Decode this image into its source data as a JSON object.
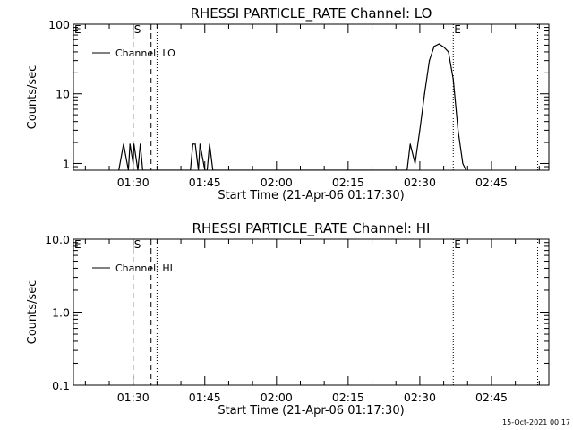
{
  "footer": {
    "timestamp": "15-Oct-2021 00:17"
  },
  "chart_data": [
    {
      "type": "line",
      "title": "RHESSI PARTICLE_RATE Channel: LO",
      "xlabel": "Start Time (21-Apr-06 01:17:30)",
      "ylabel": "Counts/sec",
      "xlim": [
        "01:17:30",
        "02:57:00"
      ],
      "ylim": [
        0.8,
        100
      ],
      "yscale": "log",
      "x_tick_labels": [
        "01:30",
        "01:45",
        "02:00",
        "02:15",
        "02:30",
        "02:45"
      ],
      "y_tick_labels": [
        "1",
        "10",
        "100"
      ],
      "legend": {
        "position": "top-left",
        "entries": [
          "Channel: LO"
        ]
      },
      "series": [
        {
          "name": "Channel: LO",
          "x": [
            "01:27:00",
            "01:28:00",
            "01:29:00",
            "01:29:20",
            "01:30:00",
            "01:30:10",
            "01:31:00",
            "01:31:30",
            "01:32:00",
            "01:42:00",
            "01:42:30",
            "01:43:00",
            "01:43:40",
            "01:44:00",
            "01:45:00",
            "01:45:30",
            "01:46:00",
            "01:46:40",
            "02:27:20",
            "02:28:00",
            "02:29:00",
            "02:30:00",
            "02:31:00",
            "02:32:00",
            "02:33:00",
            "02:34:00",
            "02:35:00",
            "02:36:00",
            "02:37:00",
            "02:38:00",
            "02:39:00",
            "02:39:40"
          ],
          "y": [
            0.8,
            1.9,
            0.8,
            1.9,
            1.0,
            1.9,
            0.8,
            1.9,
            0.8,
            0.8,
            1.9,
            1.9,
            0.8,
            1.9,
            0.8,
            0.8,
            1.9,
            0.8,
            0.8,
            1.9,
            1.0,
            3.0,
            10,
            30,
            48,
            52,
            47,
            40,
            16,
            3,
            1,
            0.8
          ]
        }
      ],
      "annotations": [
        {
          "text": "E",
          "x": "01:17:30"
        },
        {
          "text": "S",
          "x": "01:30:00"
        },
        {
          "text": "E",
          "x": "02:37:00"
        }
      ],
      "vlines_dashed": [
        "01:30:00",
        "01:33:45"
      ],
      "vlines_dotted": [
        "01:35:00",
        "02:37:00",
        "02:54:40"
      ]
    },
    {
      "type": "line",
      "title": "RHESSI PARTICLE_RATE Channel: HI",
      "xlabel": "Start Time (21-Apr-06 01:17:30)",
      "ylabel": "Counts/sec",
      "xlim": [
        "01:17:30",
        "02:57:00"
      ],
      "ylim": [
        0.1,
        10
      ],
      "yscale": "log",
      "x_tick_labels": [
        "01:30",
        "01:45",
        "02:00",
        "02:15",
        "02:30",
        "02:45"
      ],
      "y_tick_labels": [
        "0.1",
        "1.0",
        "10.0"
      ],
      "legend": {
        "position": "top-left",
        "entries": [
          "Channel: HI"
        ]
      },
      "series": [
        {
          "name": "Channel: HI",
          "x": [],
          "y": []
        }
      ],
      "annotations": [
        {
          "text": "E",
          "x": "01:17:30"
        },
        {
          "text": "S",
          "x": "01:30:00"
        },
        {
          "text": "E",
          "x": "02:37:00"
        }
      ],
      "vlines_dashed": [
        "01:30:00",
        "01:33:45"
      ],
      "vlines_dotted": [
        "01:35:00",
        "02:37:00",
        "02:54:40"
      ]
    }
  ]
}
